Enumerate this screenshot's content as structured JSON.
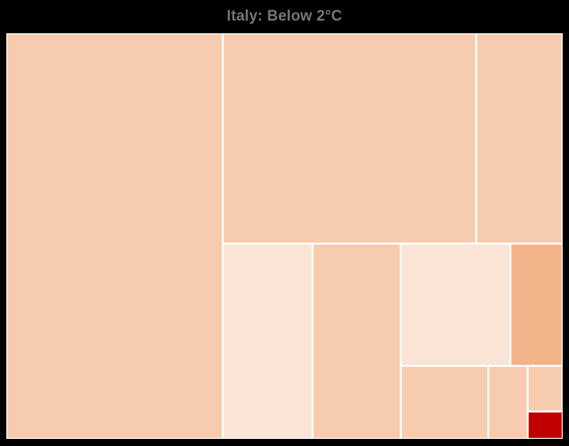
{
  "title": "Italy: Below 2°C",
  "chart_data": {
    "type": "treemap",
    "title": "Italy: Below 2°C",
    "colors": {
      "light": "#f7cbad",
      "lighter": "#f9e4d6",
      "medium": "#f2b28a",
      "dark": "#c00000",
      "border": "#ffffff",
      "background": "#000000"
    },
    "tiles": [
      {
        "value": 27.5,
        "color": "light"
      },
      {
        "value": 16.7,
        "color": "light"
      },
      {
        "value": 5.7,
        "color": "light"
      },
      {
        "value": 5.5,
        "color": "lighter"
      },
      {
        "value": 5.4,
        "color": "light"
      },
      {
        "value": 4.2,
        "color": "lighter"
      },
      {
        "value": 2.0,
        "color": "medium"
      },
      {
        "value": 2.0,
        "color": "light"
      },
      {
        "value": 0.9,
        "color": "light"
      },
      {
        "value": 0.5,
        "color": "light"
      },
      {
        "value": 0.3,
        "color": "dark"
      }
    ]
  }
}
